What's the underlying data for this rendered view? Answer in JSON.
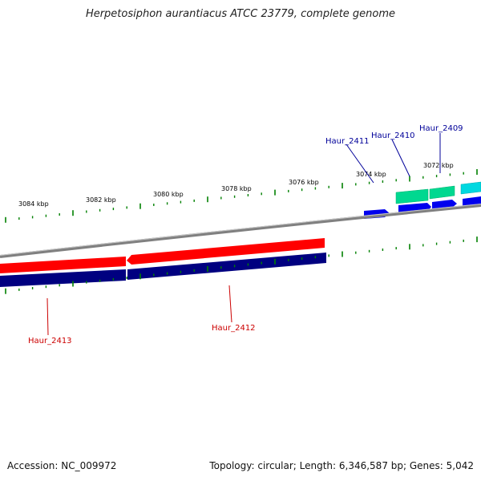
{
  "title": "Herpetosiphon aurantiacus ATCC 23779, complete genome",
  "footer": {
    "accession": "Accession: NC_009972",
    "summary": "Topology: circular; Length: 6,346,587 bp; Genes: 5,042"
  },
  "colors": {
    "reverse_gene": "#ff0000",
    "forward_gene": "#0000ee",
    "forward_gene_alt": "#00d890",
    "forward_gene_cyan": "#00d8e0",
    "strand_bar": "#000080",
    "backbone": "#808080",
    "tick": "#008000",
    "label_forward": "#000099",
    "label_reverse": "#cc0000"
  },
  "scale_labels": [
    "3084 kbp",
    "3082 kbp",
    "3080 kbp",
    "3078 kbp",
    "3076 kbp",
    "3074 kbp",
    "3072 kbp"
  ],
  "genes": [
    {
      "name": "Haur_2413",
      "strand": "reverse"
    },
    {
      "name": "Haur_2412",
      "strand": "reverse"
    },
    {
      "name": "Haur_2411",
      "strand": "forward"
    },
    {
      "name": "Haur_2410",
      "strand": "forward"
    },
    {
      "name": "Haur_2409",
      "strand": "forward"
    }
  ]
}
